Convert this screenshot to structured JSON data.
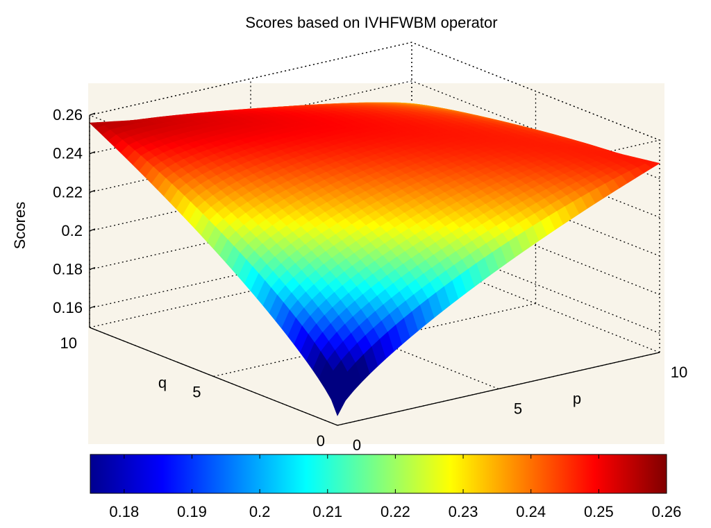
{
  "chart_data": {
    "type": "surface",
    "title": "Scores based on IVHFWBM operator",
    "xlabel": "p",
    "ylabel": "q",
    "zlabel": "Scores",
    "xlim": [
      0,
      10
    ],
    "ylim": [
      0,
      10
    ],
    "zlim": [
      0.15,
      0.26
    ],
    "x_ticks": [
      "0",
      "5",
      "10"
    ],
    "y_ticks": [
      "0",
      "5",
      "10"
    ],
    "z_ticks": [
      "0.16",
      "0.18",
      "0.2",
      "0.22",
      "0.24",
      "0.26"
    ],
    "grid": true,
    "corner_values": [
      {
        "p": 0,
        "q": 0,
        "score": 0.155
      },
      {
        "p": 0,
        "q": 10,
        "score": 0.256
      },
      {
        "p": 10,
        "q": 0,
        "score": 0.248
      },
      {
        "p": 10,
        "q": 10,
        "score": 0.228
      }
    ],
    "colormap": "jet",
    "colorbar": {
      "placement": "bottom",
      "range": [
        0.175,
        0.26
      ],
      "ticks": [
        "0.18",
        "0.19",
        "0.2",
        "0.21",
        "0.22",
        "0.23",
        "0.24",
        "0.25",
        "0.26"
      ]
    }
  },
  "colors": {
    "axes_background": "#f8f4ea",
    "figure_background": "#ffffff",
    "grid": "#000000"
  }
}
